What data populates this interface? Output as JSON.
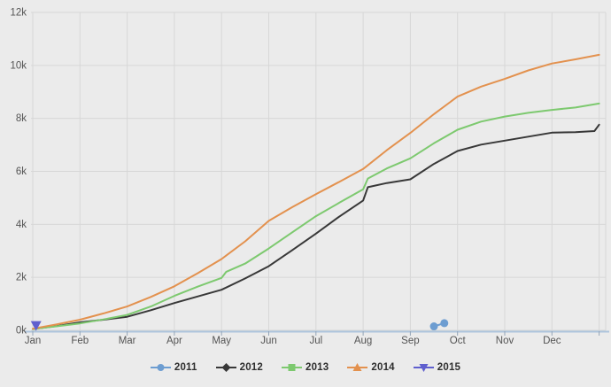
{
  "chart": {
    "background_color": "#ebebeb",
    "grid_color": "#d7d7d7",
    "axis_line_color": "#aec4dc",
    "tick_color": "#93a5b8",
    "axis_label_color": "#545454",
    "legend_text_color": "#2e2e2e"
  },
  "chart_data": {
    "type": "line",
    "title": "",
    "xlabel": "",
    "ylabel": "",
    "x_axis": {
      "tick_labels": [
        "Jan",
        "Feb",
        "Mar",
        "Apr",
        "May",
        "Jun",
        "Jul",
        "Aug",
        "Sep",
        "Oct",
        "Nov",
        "Dec"
      ],
      "range_months": [
        0,
        12.2
      ]
    },
    "y_axis": {
      "tick_labels": [
        "0k",
        "2k",
        "4k",
        "6k",
        "8k",
        "10k",
        "12k"
      ],
      "tick_values": [
        0,
        2000,
        4000,
        6000,
        8000,
        10000,
        12000
      ],
      "range": [
        0,
        12000
      ]
    },
    "grid": true,
    "legend_position": "bottom",
    "series": [
      {
        "name": "2011",
        "color": "#6d9dd1",
        "marker": "circle",
        "show_point_markers": true,
        "points": [
          [
            8.5,
            150
          ],
          [
            8.72,
            270
          ]
        ]
      },
      {
        "name": "2012",
        "color": "#383838",
        "marker": "diamond",
        "show_point_markers": false,
        "points": [
          [
            0,
            50
          ],
          [
            0.5,
            160
          ],
          [
            1,
            300
          ],
          [
            1.5,
            400
          ],
          [
            2,
            510
          ],
          [
            2.5,
            760
          ],
          [
            3,
            1030
          ],
          [
            3.5,
            1280
          ],
          [
            4,
            1530
          ],
          [
            4.5,
            1960
          ],
          [
            5,
            2420
          ],
          [
            5.5,
            3030
          ],
          [
            6,
            3650
          ],
          [
            6.5,
            4300
          ],
          [
            7,
            4900
          ],
          [
            7.1,
            5400
          ],
          [
            7.5,
            5560
          ],
          [
            8,
            5700
          ],
          [
            8.5,
            6280
          ],
          [
            9,
            6770
          ],
          [
            9.5,
            7010
          ],
          [
            10,
            7160
          ],
          [
            10.5,
            7310
          ],
          [
            11,
            7460
          ],
          [
            11.5,
            7480
          ],
          [
            11.9,
            7520
          ],
          [
            12,
            7760
          ]
        ]
      },
      {
        "name": "2013",
        "color": "#7dc96f",
        "marker": "square",
        "show_point_markers": false,
        "points": [
          [
            0,
            50
          ],
          [
            0.5,
            150
          ],
          [
            1,
            260
          ],
          [
            1.5,
            410
          ],
          [
            2,
            580
          ],
          [
            2.5,
            900
          ],
          [
            3,
            1300
          ],
          [
            3.5,
            1650
          ],
          [
            4,
            1980
          ],
          [
            4.1,
            2210
          ],
          [
            4.5,
            2520
          ],
          [
            5,
            3090
          ],
          [
            5.5,
            3700
          ],
          [
            6,
            4310
          ],
          [
            6.5,
            4820
          ],
          [
            7,
            5320
          ],
          [
            7.1,
            5730
          ],
          [
            7.5,
            6110
          ],
          [
            8,
            6490
          ],
          [
            8.5,
            7060
          ],
          [
            9,
            7570
          ],
          [
            9.5,
            7880
          ],
          [
            10,
            8070
          ],
          [
            10.5,
            8210
          ],
          [
            11,
            8320
          ],
          [
            11.5,
            8410
          ],
          [
            12,
            8560
          ]
        ]
      },
      {
        "name": "2014",
        "color": "#e3914e",
        "marker": "triangle-up",
        "show_point_markers": false,
        "points": [
          [
            0,
            60
          ],
          [
            0.5,
            220
          ],
          [
            1,
            400
          ],
          [
            1.5,
            640
          ],
          [
            2,
            900
          ],
          [
            2.5,
            1260
          ],
          [
            3,
            1660
          ],
          [
            3.5,
            2160
          ],
          [
            4,
            2690
          ],
          [
            4.5,
            3360
          ],
          [
            5,
            4130
          ],
          [
            5.5,
            4650
          ],
          [
            6,
            5140
          ],
          [
            6.5,
            5610
          ],
          [
            7,
            6090
          ],
          [
            7.5,
            6800
          ],
          [
            8,
            7450
          ],
          [
            8.5,
            8160
          ],
          [
            9,
            8820
          ],
          [
            9.5,
            9200
          ],
          [
            10,
            9490
          ],
          [
            10.5,
            9810
          ],
          [
            11,
            10070
          ],
          [
            11.5,
            10230
          ],
          [
            12,
            10400
          ]
        ]
      },
      {
        "name": "2015",
        "color": "#5f5fce",
        "marker": "triangle-down",
        "show_point_markers": true,
        "points": [
          [
            0.07,
            180
          ]
        ]
      }
    ]
  }
}
